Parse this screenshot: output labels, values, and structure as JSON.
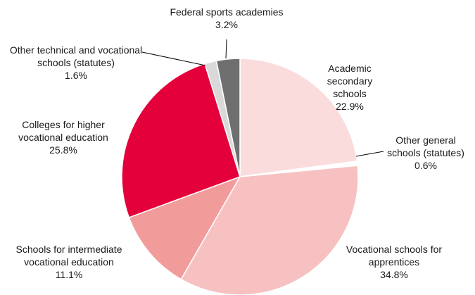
{
  "chart_data": {
    "type": "pie",
    "categories": [
      "Academic secondary schools",
      "Other general schools (statutes)",
      "Vocational schools for apprentices",
      "Schools for intermediate vocational education",
      "Colleges for higher vocational education",
      "Other technical and vocational schools (statutes)",
      "Federal sports academies"
    ],
    "values": [
      22.9,
      0.6,
      34.8,
      11.1,
      25.8,
      1.6,
      3.2
    ],
    "value_labels": [
      "22.9%",
      "0.6%",
      "34.8%",
      "11.1%",
      "25.8%",
      "1.6%",
      "3.2%"
    ],
    "colors": [
      "#fbdcdc",
      "#ffffff",
      "#f7c1c1",
      "#f29b9b",
      "#e4003a",
      "#d9d9d9",
      "#6f6f6f"
    ]
  }
}
